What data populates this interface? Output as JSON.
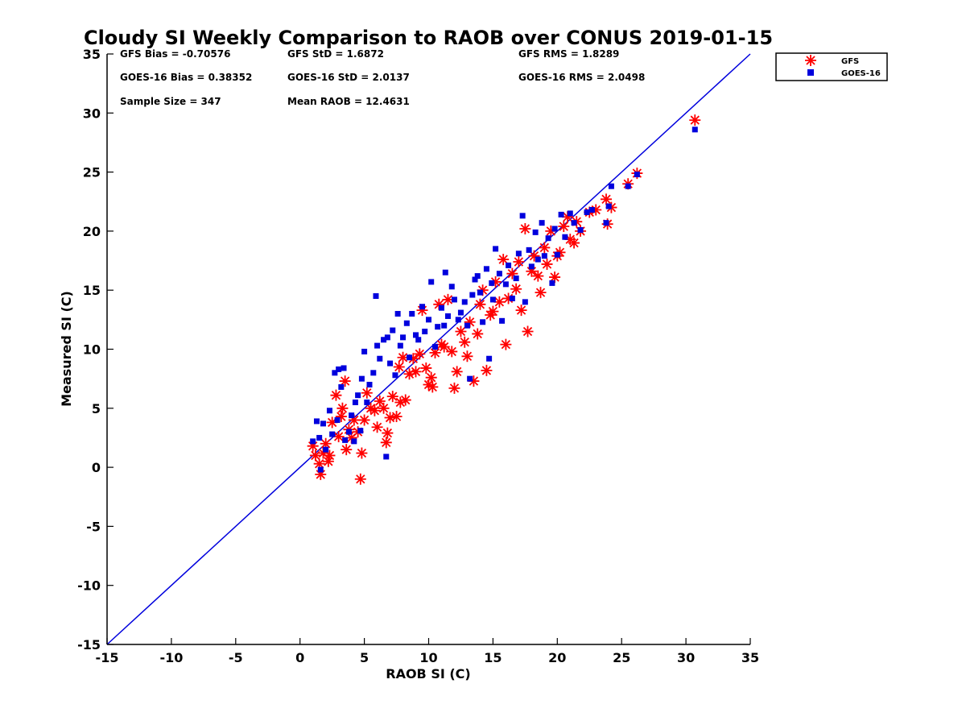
{
  "chart_data": {
    "type": "scatter",
    "title": "Cloudy SI Weekly Comparison to RAOB over CONUS 2019-01-15",
    "xlabel": "RAOB SI (C)",
    "ylabel": "Measured SI (C)",
    "xlim": [
      -15,
      35
    ],
    "ylim": [
      -15,
      35
    ],
    "xticks": [
      "-15",
      "-10",
      "-5",
      "0",
      "5",
      "10",
      "15",
      "20",
      "25",
      "30",
      "35"
    ],
    "yticks": [
      "35",
      "30",
      "25",
      "20",
      "15",
      "10",
      "5",
      "0",
      "-5",
      "-10",
      "-15"
    ],
    "grid": false,
    "legend_position": "outside-top-right",
    "stats": [
      "GFS Bias = -0.70576",
      "GFS StD = 1.6872",
      "GFS RMS = 1.8289",
      "GOES-16 Bias = 0.38352",
      "GOES-16 StD = 2.0137",
      "GOES-16 RMS = 2.0498",
      "Sample Size = 347",
      "Mean RAOB = 12.4631"
    ],
    "reference_line": {
      "name": "1:1 line",
      "x": [
        -15,
        35
      ],
      "y": [
        -15,
        35
      ],
      "color": "#0000dd"
    },
    "series": [
      {
        "name": "GFS",
        "marker": "asterisk",
        "color": "#ff0000",
        "points": [
          [
            1.0,
            1.8
          ],
          [
            1.2,
            1.0
          ],
          [
            1.5,
            0.3
          ],
          [
            1.6,
            -0.6
          ],
          [
            1.8,
            1.2
          ],
          [
            2.0,
            2.0
          ],
          [
            2.2,
            0.5
          ],
          [
            2.3,
            1.0
          ],
          [
            2.5,
            3.8
          ],
          [
            2.8,
            6.1
          ],
          [
            3.0,
            2.6
          ],
          [
            3.2,
            4.3
          ],
          [
            3.3,
            5.0
          ],
          [
            3.5,
            7.3
          ],
          [
            3.6,
            1.5
          ],
          [
            3.8,
            3.2
          ],
          [
            4.0,
            2.5
          ],
          [
            4.2,
            4.0
          ],
          [
            4.5,
            3.0
          ],
          [
            4.7,
            -1.0
          ],
          [
            4.8,
            1.2
          ],
          [
            5.0,
            4.0
          ],
          [
            5.2,
            6.3
          ],
          [
            5.5,
            5.0
          ],
          [
            5.8,
            4.8
          ],
          [
            6.0,
            3.4
          ],
          [
            6.2,
            5.6
          ],
          [
            6.5,
            5.0
          ],
          [
            6.7,
            2.1
          ],
          [
            6.8,
            2.9
          ],
          [
            7.0,
            4.2
          ],
          [
            7.2,
            6.0
          ],
          [
            7.5,
            4.3
          ],
          [
            7.7,
            8.5
          ],
          [
            7.8,
            5.5
          ],
          [
            8.0,
            9.3
          ],
          [
            8.2,
            5.7
          ],
          [
            8.5,
            7.9
          ],
          [
            8.8,
            9.2
          ],
          [
            9.0,
            8.1
          ],
          [
            9.3,
            9.6
          ],
          [
            9.5,
            13.3
          ],
          [
            9.8,
            8.4
          ],
          [
            10.0,
            7.0
          ],
          [
            10.2,
            7.6
          ],
          [
            10.3,
            6.8
          ],
          [
            10.5,
            9.7
          ],
          [
            10.8,
            13.8
          ],
          [
            11.0,
            10.4
          ],
          [
            11.2,
            10.2
          ],
          [
            11.5,
            14.2
          ],
          [
            11.8,
            9.8
          ],
          [
            12.0,
            6.7
          ],
          [
            12.2,
            8.1
          ],
          [
            12.5,
            11.5
          ],
          [
            12.8,
            10.6
          ],
          [
            13.0,
            9.4
          ],
          [
            13.2,
            12.3
          ],
          [
            13.5,
            7.3
          ],
          [
            13.8,
            11.3
          ],
          [
            14.0,
            13.8
          ],
          [
            14.2,
            15.0
          ],
          [
            14.5,
            8.2
          ],
          [
            14.8,
            12.9
          ],
          [
            15.0,
            13.2
          ],
          [
            15.2,
            15.7
          ],
          [
            15.5,
            14.0
          ],
          [
            15.8,
            17.6
          ],
          [
            16.0,
            10.4
          ],
          [
            16.2,
            14.3
          ],
          [
            16.5,
            16.4
          ],
          [
            16.8,
            15.1
          ],
          [
            17.0,
            17.4
          ],
          [
            17.2,
            13.3
          ],
          [
            17.5,
            20.2
          ],
          [
            17.7,
            11.5
          ],
          [
            18.0,
            16.6
          ],
          [
            18.2,
            17.9
          ],
          [
            18.5,
            16.2
          ],
          [
            18.7,
            14.8
          ],
          [
            19.0,
            18.6
          ],
          [
            19.2,
            17.2
          ],
          [
            19.5,
            20.0
          ],
          [
            19.8,
            16.1
          ],
          [
            20.0,
            17.9
          ],
          [
            20.2,
            18.2
          ],
          [
            20.5,
            20.4
          ],
          [
            20.8,
            21.2
          ],
          [
            21.0,
            19.3
          ],
          [
            21.3,
            19.0
          ],
          [
            21.5,
            20.8
          ],
          [
            21.8,
            20.0
          ],
          [
            22.5,
            21.6
          ],
          [
            23.0,
            21.8
          ],
          [
            23.8,
            22.7
          ],
          [
            23.9,
            20.6
          ],
          [
            24.2,
            22.0
          ],
          [
            25.5,
            24.0
          ],
          [
            26.2,
            24.9
          ],
          [
            30.7,
            29.4
          ]
        ]
      },
      {
        "name": "GOES-16",
        "marker": "square",
        "color": "#0000dd",
        "points": [
          [
            1.0,
            2.2
          ],
          [
            1.3,
            3.9
          ],
          [
            1.5,
            2.5
          ],
          [
            1.6,
            -0.2
          ],
          [
            1.8,
            3.7
          ],
          [
            2.0,
            1.5
          ],
          [
            2.3,
            4.8
          ],
          [
            2.5,
            2.8
          ],
          [
            2.7,
            8.0
          ],
          [
            2.9,
            4.0
          ],
          [
            3.0,
            8.3
          ],
          [
            3.2,
            6.8
          ],
          [
            3.4,
            8.4
          ],
          [
            3.5,
            2.3
          ],
          [
            3.8,
            3.0
          ],
          [
            4.0,
            4.4
          ],
          [
            4.2,
            2.2
          ],
          [
            4.3,
            5.5
          ],
          [
            4.5,
            6.1
          ],
          [
            4.7,
            3.1
          ],
          [
            4.8,
            7.5
          ],
          [
            5.0,
            9.8
          ],
          [
            5.2,
            5.5
          ],
          [
            5.4,
            7.0
          ],
          [
            5.7,
            8.0
          ],
          [
            5.9,
            14.5
          ],
          [
            6.0,
            10.3
          ],
          [
            6.2,
            9.2
          ],
          [
            6.5,
            10.8
          ],
          [
            6.7,
            0.9
          ],
          [
            6.8,
            11.0
          ],
          [
            7.0,
            8.8
          ],
          [
            7.2,
            11.6
          ],
          [
            7.4,
            7.8
          ],
          [
            7.6,
            13.0
          ],
          [
            7.8,
            10.3
          ],
          [
            8.0,
            11.0
          ],
          [
            8.3,
            12.2
          ],
          [
            8.5,
            9.3
          ],
          [
            8.7,
            13.0
          ],
          [
            9.0,
            11.2
          ],
          [
            9.2,
            10.8
          ],
          [
            9.5,
            13.6
          ],
          [
            9.7,
            11.5
          ],
          [
            10.0,
            12.5
          ],
          [
            10.2,
            15.7
          ],
          [
            10.5,
            10.2
          ],
          [
            10.7,
            11.9
          ],
          [
            11.0,
            13.5
          ],
          [
            11.2,
            12.0
          ],
          [
            11.3,
            16.5
          ],
          [
            11.5,
            12.8
          ],
          [
            11.8,
            15.3
          ],
          [
            12.0,
            14.2
          ],
          [
            12.3,
            12.5
          ],
          [
            12.5,
            13.1
          ],
          [
            12.8,
            14.0
          ],
          [
            13.0,
            12.0
          ],
          [
            13.2,
            7.5
          ],
          [
            13.4,
            14.6
          ],
          [
            13.6,
            15.9
          ],
          [
            13.8,
            16.2
          ],
          [
            14.0,
            14.8
          ],
          [
            14.2,
            12.3
          ],
          [
            14.5,
            16.8
          ],
          [
            14.7,
            9.2
          ],
          [
            14.9,
            15.6
          ],
          [
            15.0,
            14.2
          ],
          [
            15.2,
            18.5
          ],
          [
            15.5,
            16.4
          ],
          [
            15.7,
            12.4
          ],
          [
            16.0,
            15.5
          ],
          [
            16.2,
            17.1
          ],
          [
            16.5,
            14.3
          ],
          [
            16.8,
            16.0
          ],
          [
            17.0,
            18.1
          ],
          [
            17.3,
            21.3
          ],
          [
            17.5,
            14.0
          ],
          [
            17.8,
            18.4
          ],
          [
            18.0,
            17.0
          ],
          [
            18.3,
            19.9
          ],
          [
            18.5,
            17.6
          ],
          [
            18.8,
            20.7
          ],
          [
            19.0,
            17.9
          ],
          [
            19.3,
            19.4
          ],
          [
            19.6,
            15.6
          ],
          [
            19.8,
            20.2
          ],
          [
            20.0,
            18.0
          ],
          [
            20.3,
            21.4
          ],
          [
            20.6,
            19.5
          ],
          [
            21.0,
            21.5
          ],
          [
            21.3,
            20.7
          ],
          [
            21.8,
            20.1
          ],
          [
            22.3,
            21.6
          ],
          [
            22.7,
            21.8
          ],
          [
            23.8,
            20.7
          ],
          [
            24.0,
            22.1
          ],
          [
            24.2,
            23.8
          ],
          [
            25.5,
            23.8
          ],
          [
            26.2,
            24.8
          ],
          [
            30.7,
            28.6
          ]
        ]
      }
    ]
  }
}
